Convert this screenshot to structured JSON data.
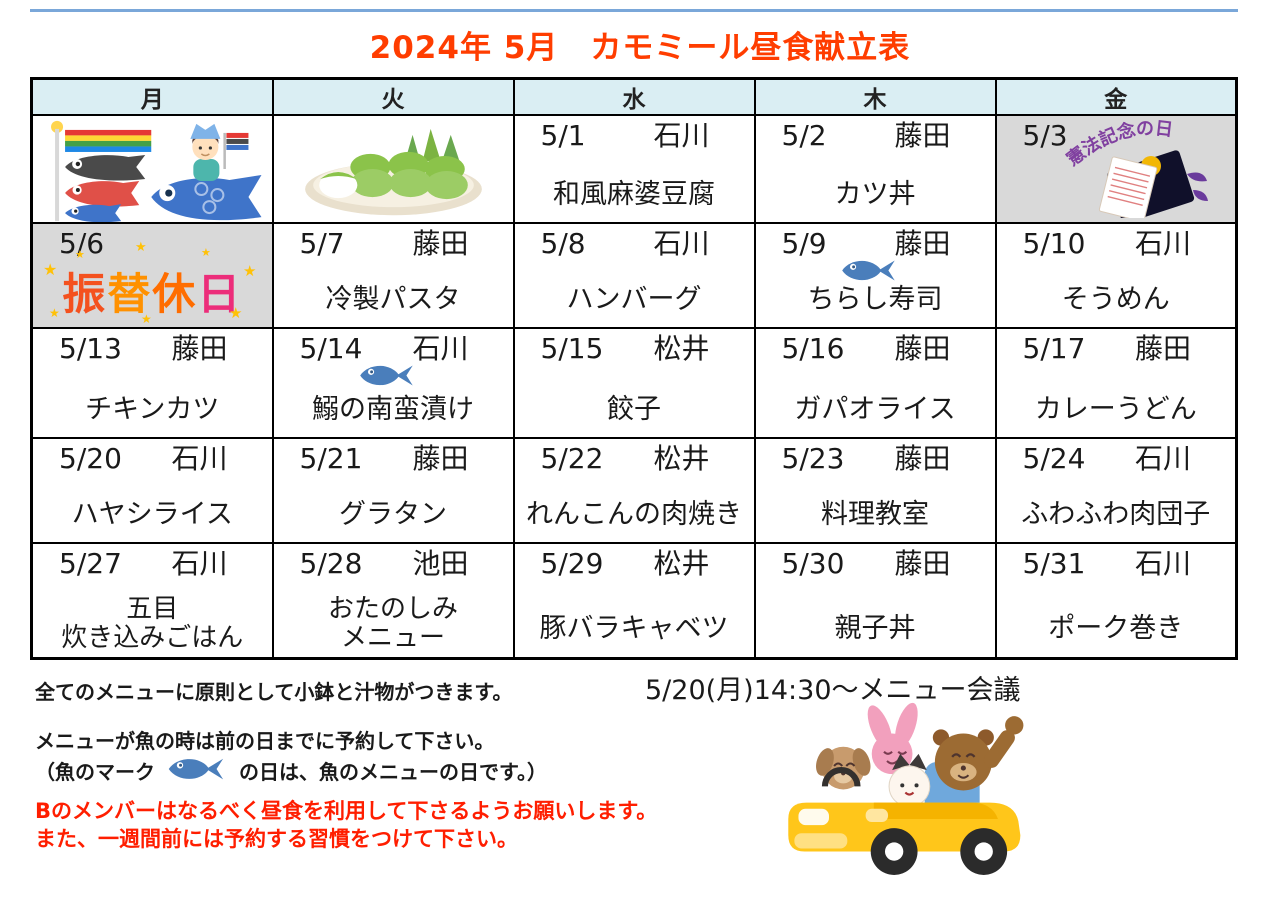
{
  "title": "2024年 5月　カモミール昼食献立表",
  "calendar": {
    "weekdays": [
      "月",
      "火",
      "水",
      "木",
      "金"
    ],
    "rows": [
      [
        {
          "type": "illustration",
          "illustration": "koinobori",
          "alt": "こいのぼり"
        },
        {
          "type": "illustration",
          "illustration": "kashiwamochi",
          "alt": "柏餅"
        },
        {
          "type": "menu",
          "date": "5/1",
          "staff": "石川",
          "menu": "和風麻婆豆腐"
        },
        {
          "type": "menu",
          "date": "5/2",
          "staff": "藤田",
          "menu": "カツ丼"
        },
        {
          "type": "holiday",
          "date": "5/3",
          "illustration": "constitution",
          "label": "憲法記念の日",
          "gray": true
        }
      ],
      [
        {
          "type": "furikae",
          "date": "5/6",
          "label": "振替休日",
          "gray": true
        },
        {
          "type": "menu",
          "date": "5/7",
          "staff": "藤田",
          "menu": "冷製パスタ"
        },
        {
          "type": "menu",
          "date": "5/8",
          "staff": "石川",
          "menu": "ハンバーグ"
        },
        {
          "type": "menu",
          "date": "5/9",
          "staff": "藤田",
          "menu": "ちらし寿司",
          "fish": true
        },
        {
          "type": "menu",
          "date": "5/10",
          "staff": "石川",
          "menu": "そうめん"
        }
      ],
      [
        {
          "type": "menu",
          "date": "5/13",
          "staff": "藤田",
          "menu": "チキンカツ"
        },
        {
          "type": "menu",
          "date": "5/14",
          "staff": "石川",
          "menu": "鰯の南蛮漬け",
          "fish": true
        },
        {
          "type": "menu",
          "date": "5/15",
          "staff": "松井",
          "menu": "餃子"
        },
        {
          "type": "menu",
          "date": "5/16",
          "staff": "藤田",
          "menu": "ガパオライス"
        },
        {
          "type": "menu",
          "date": "5/17",
          "staff": "藤田",
          "menu": "カレーうどん"
        }
      ],
      [
        {
          "type": "menu",
          "date": "5/20",
          "staff": "石川",
          "menu": "ハヤシライス"
        },
        {
          "type": "menu",
          "date": "5/21",
          "staff": "藤田",
          "menu": "グラタン"
        },
        {
          "type": "menu",
          "date": "5/22",
          "staff": "松井",
          "menu": "れんこんの肉焼き"
        },
        {
          "type": "menu",
          "date": "5/23",
          "staff": "藤田",
          "menu": "料理教室"
        },
        {
          "type": "menu",
          "date": "5/24",
          "staff": "石川",
          "menu": "ふわふわ肉団子"
        }
      ],
      [
        {
          "type": "menu",
          "date": "5/27",
          "staff": "石川",
          "menu": "五目\n炊き込みごはん"
        },
        {
          "type": "menu",
          "date": "5/28",
          "staff": "池田",
          "menu": "おたのしみ\nメニュー"
        },
        {
          "type": "menu",
          "date": "5/29",
          "staff": "松井",
          "menu": "豚バラキャベツ"
        },
        {
          "type": "menu",
          "date": "5/30",
          "staff": "藤田",
          "menu": "親子丼"
        },
        {
          "type": "menu",
          "date": "5/31",
          "staff": "石川",
          "menu": "ポーク巻き"
        }
      ]
    ]
  },
  "footer": {
    "note_side_dish": "全てのメニューに原則として小鉢と汁物がつきます。",
    "meeting": "5/20(月)14:30～メニュー会議",
    "note_fish_line1": "メニューが魚の時は前の日までに予約して下さい。",
    "note_fish_line2_prefix": "（魚のマーク",
    "note_fish_line2_suffix": "の日は、魚のメニューの日です。）",
    "warning_line1": "Bのメンバーはなるべく昼食を利用して下さるようお願いします。",
    "warning_line2": "また、一週間前には予約する習慣をつけて下さい。"
  },
  "icons": {
    "fish": "fish-icon",
    "koinobori": "koinobori-illustration",
    "kashiwamochi": "kashiwa-mochi-illustration",
    "constitution": "constitution-day-illustration",
    "car": "animals-car-illustration",
    "star": "star-icon"
  },
  "colors": {
    "title": "#ff3d00",
    "header_bg": "#daeef3",
    "holiday_bg": "#d9d9d9",
    "warning_red": "#ff1e00",
    "fish_blue": "#4a7ebb",
    "star_gold": "#ffc107",
    "furikae_chars": [
      "#f4511e",
      "#ff9100",
      "#ff6d00",
      "#ec2d7a"
    ]
  }
}
